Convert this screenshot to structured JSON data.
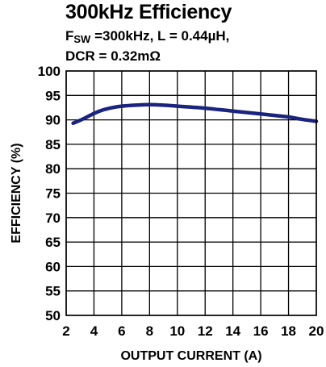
{
  "chart_data": {
    "type": "line",
    "title": "300kHz Efficiency",
    "subtitle": {
      "fsw_symbol": "F",
      "fsw_subscript": "SW",
      "line1_rest": " =300kHz, L = 0.44µH,",
      "line2": "DCR = 0.32mΩ"
    },
    "xlabel": "OUTPUT CURRENT (A)",
    "ylabel": "EFFICIENCY (%)",
    "xlim": [
      2,
      20
    ],
    "ylim": [
      50,
      100
    ],
    "xticks": [
      2,
      4,
      6,
      8,
      10,
      12,
      14,
      16,
      18,
      20
    ],
    "yticks": [
      50,
      55,
      60,
      65,
      70,
      75,
      80,
      85,
      90,
      95,
      100
    ],
    "grid": true,
    "line_color": "#1a237e",
    "series": [
      {
        "x": [
          2.5,
          3,
          3.5,
          4,
          4.5,
          5,
          5.5,
          6,
          7,
          8,
          9,
          10,
          11,
          12,
          13,
          14,
          15,
          16,
          17,
          18,
          19,
          20
        ],
        "values": [
          89.3,
          89.9,
          90.6,
          91.3,
          91.9,
          92.3,
          92.6,
          92.8,
          93.0,
          93.1,
          93.0,
          92.8,
          92.6,
          92.4,
          92.1,
          91.8,
          91.5,
          91.2,
          90.9,
          90.6,
          90.1,
          89.7
        ]
      }
    ]
  }
}
